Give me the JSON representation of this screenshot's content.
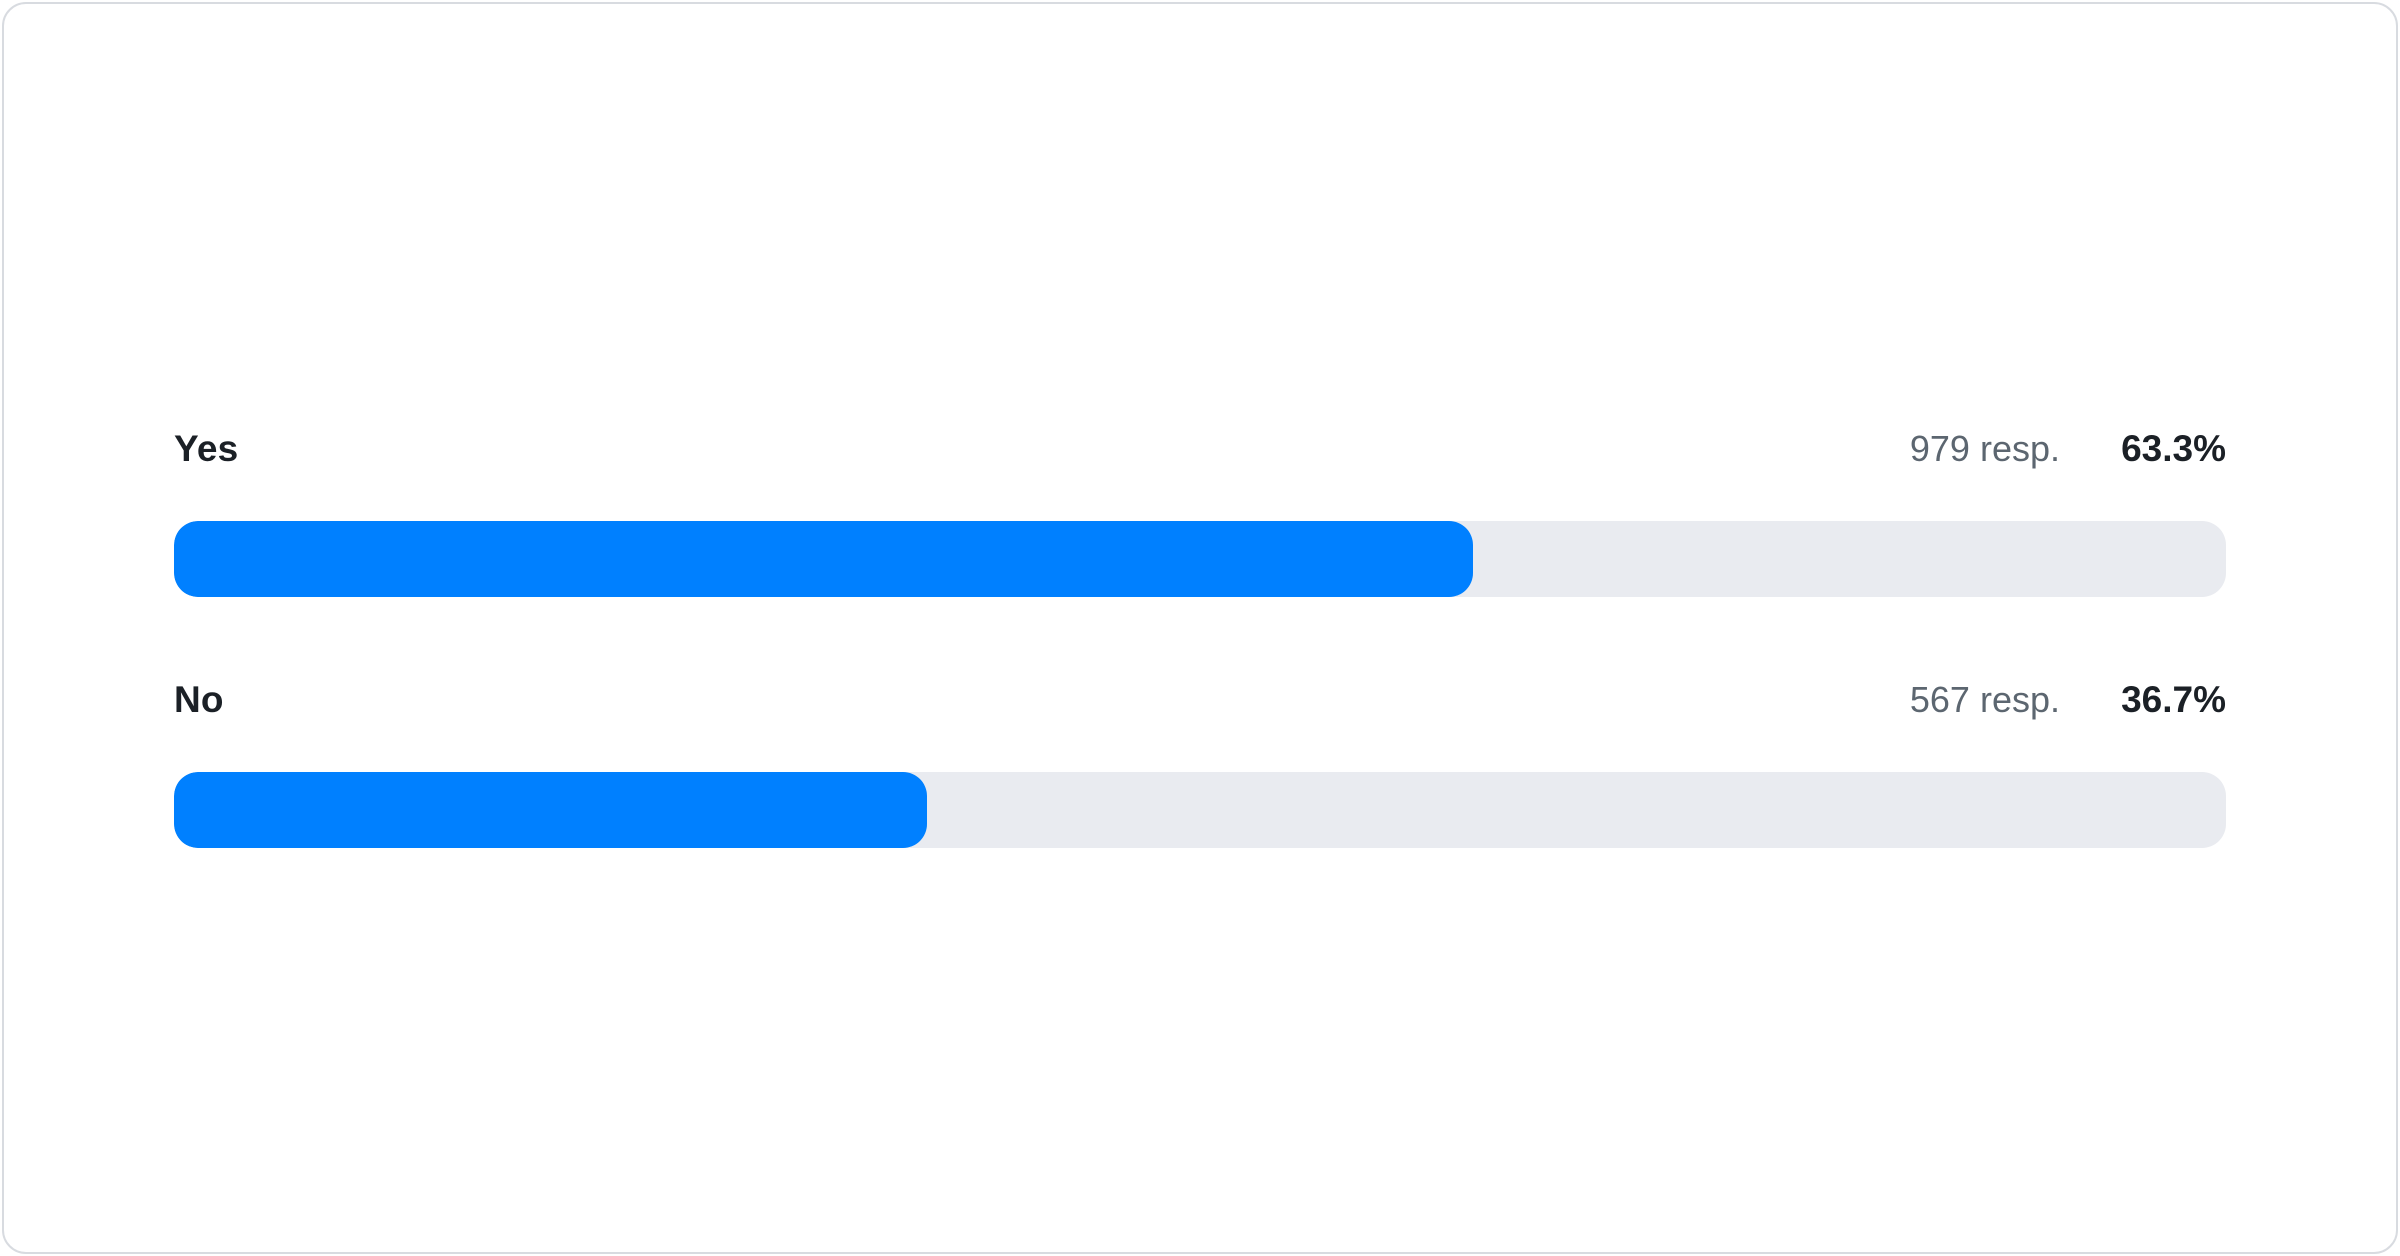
{
  "chart_data": {
    "type": "bar",
    "orientation": "horizontal",
    "title": "",
    "xlabel": "",
    "ylabel": "",
    "categories": [
      "Yes",
      "No"
    ],
    "values": [
      63.3,
      36.7
    ],
    "counts": [
      979,
      567
    ],
    "count_labels": [
      "979 resp.",
      "567 resp."
    ],
    "value_labels": [
      "63.3%",
      "36.7%"
    ],
    "xlim": [
      0,
      100
    ],
    "grid": false,
    "legend": false
  },
  "poll": {
    "options": [
      {
        "label": "Yes",
        "responses": "979 resp.",
        "percent": "63.3%",
        "value": 63.3
      },
      {
        "label": "No",
        "responses": "567 resp.",
        "percent": "36.7%",
        "value": 36.7
      }
    ]
  },
  "colors": {
    "bar_fill": "#0080FF",
    "bar_track": "#E9EBF0",
    "label": "#1B2026",
    "responses_text": "#5C6670",
    "card_border": "#D8DBE0",
    "card_bg": "#FFFFFF"
  }
}
